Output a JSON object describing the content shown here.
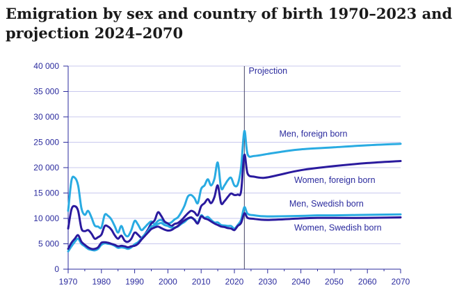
{
  "chart_data": {
    "type": "line",
    "title": "Emigration by sex and country of birth 1970–2023 and projection 2024–2070",
    "xlim": [
      1970,
      2070
    ],
    "ylim": [
      0,
      40000
    ],
    "x_ticks": [
      1970,
      1980,
      1990,
      2000,
      2010,
      2020,
      2030,
      2040,
      2050,
      2060,
      2070
    ],
    "y_ticks": [
      0,
      5000,
      10000,
      15000,
      20000,
      25000,
      30000,
      35000,
      40000
    ],
    "y_tick_labels": [
      "0",
      "5 000",
      "10 000",
      "15 000",
      "20 000",
      "25 000",
      "30 000",
      "35 000",
      "40 000"
    ],
    "grid": "horizontal",
    "projection_marker": {
      "x": 2023,
      "label": "Projection"
    },
    "colors": {
      "light": "#29abe2",
      "dark": "#2a1a9e",
      "grid": "#c8c8ee",
      "axis": "#2b2b9e"
    },
    "series": [
      {
        "name": "Men, foreign born",
        "color": "#29abe2",
        "points": [
          [
            1970,
            11500
          ],
          [
            1971,
            17500
          ],
          [
            1972,
            18000
          ],
          [
            1973,
            16500
          ],
          [
            1974,
            12000
          ],
          [
            1975,
            10700
          ],
          [
            1976,
            11500
          ],
          [
            1977,
            10200
          ],
          [
            1978,
            8600
          ],
          [
            1979,
            8400
          ],
          [
            1980,
            8200
          ],
          [
            1981,
            10700
          ],
          [
            1982,
            10500
          ],
          [
            1983,
            9800
          ],
          [
            1984,
            8500
          ],
          [
            1985,
            7200
          ],
          [
            1986,
            8500
          ],
          [
            1987,
            6900
          ],
          [
            1988,
            6500
          ],
          [
            1989,
            7700
          ],
          [
            1990,
            9500
          ],
          [
            1991,
            8800
          ],
          [
            1992,
            7700
          ],
          [
            1993,
            8200
          ],
          [
            1994,
            8900
          ],
          [
            1995,
            9400
          ],
          [
            1996,
            8900
          ],
          [
            1997,
            9500
          ],
          [
            1998,
            9700
          ],
          [
            1999,
            9200
          ],
          [
            2000,
            9000
          ],
          [
            2001,
            9200
          ],
          [
            2002,
            9800
          ],
          [
            2003,
            10200
          ],
          [
            2004,
            11200
          ],
          [
            2005,
            12500
          ],
          [
            2006,
            14300
          ],
          [
            2007,
            14600
          ],
          [
            2008,
            14000
          ],
          [
            2009,
            13000
          ],
          [
            2010,
            15800
          ],
          [
            2011,
            16500
          ],
          [
            2012,
            17700
          ],
          [
            2013,
            16500
          ],
          [
            2014,
            17800
          ],
          [
            2015,
            21000
          ],
          [
            2016,
            16000
          ],
          [
            2017,
            16500
          ],
          [
            2018,
            17500
          ],
          [
            2019,
            18000
          ],
          [
            2020,
            16500
          ],
          [
            2021,
            16700
          ],
          [
            2022,
            20000
          ],
          [
            2023,
            27200
          ],
          [
            2024,
            22600
          ],
          [
            2026,
            22300
          ],
          [
            2030,
            22700
          ],
          [
            2035,
            23200
          ],
          [
            2040,
            23600
          ],
          [
            2050,
            24000
          ],
          [
            2060,
            24400
          ],
          [
            2070,
            24700
          ]
        ]
      },
      {
        "name": "Women, foreign born",
        "color": "#2a1a9e",
        "points": [
          [
            1970,
            8000
          ],
          [
            1971,
            11800
          ],
          [
            1972,
            12400
          ],
          [
            1973,
            11500
          ],
          [
            1974,
            8000
          ],
          [
            1975,
            7500
          ],
          [
            1976,
            7700
          ],
          [
            1977,
            7000
          ],
          [
            1978,
            6000
          ],
          [
            1979,
            6300
          ],
          [
            1980,
            6800
          ],
          [
            1981,
            8500
          ],
          [
            1982,
            8400
          ],
          [
            1983,
            7800
          ],
          [
            1984,
            6700
          ],
          [
            1985,
            6000
          ],
          [
            1986,
            6600
          ],
          [
            1987,
            5600
          ],
          [
            1988,
            5400
          ],
          [
            1989,
            6000
          ],
          [
            1990,
            7200
          ],
          [
            1991,
            6800
          ],
          [
            1992,
            6200
          ],
          [
            1993,
            6800
          ],
          [
            1994,
            7800
          ],
          [
            1995,
            9000
          ],
          [
            1996,
            9600
          ],
          [
            1997,
            11200
          ],
          [
            1998,
            10500
          ],
          [
            1999,
            9400
          ],
          [
            2000,
            9000
          ],
          [
            2001,
            8500
          ],
          [
            2002,
            8900
          ],
          [
            2003,
            9100
          ],
          [
            2004,
            9600
          ],
          [
            2005,
            10300
          ],
          [
            2006,
            11000
          ],
          [
            2007,
            11500
          ],
          [
            2008,
            11200
          ],
          [
            2009,
            10600
          ],
          [
            2010,
            12400
          ],
          [
            2011,
            13000
          ],
          [
            2012,
            13800
          ],
          [
            2013,
            13000
          ],
          [
            2014,
            14200
          ],
          [
            2015,
            16500
          ],
          [
            2016,
            13000
          ],
          [
            2017,
            13400
          ],
          [
            2018,
            14200
          ],
          [
            2019,
            14900
          ],
          [
            2020,
            14600
          ],
          [
            2021,
            14700
          ],
          [
            2022,
            15300
          ],
          [
            2023,
            22500
          ],
          [
            2024,
            18800
          ],
          [
            2026,
            18200
          ],
          [
            2029,
            18000
          ],
          [
            2033,
            18500
          ],
          [
            2040,
            19500
          ],
          [
            2050,
            20300
          ],
          [
            2060,
            20900
          ],
          [
            2070,
            21300
          ]
        ]
      },
      {
        "name": "Men, Swedish born",
        "color": "#29abe2",
        "points": [
          [
            1970,
            3500
          ],
          [
            1971,
            4500
          ],
          [
            1972,
            5400
          ],
          [
            1973,
            6000
          ],
          [
            1974,
            5000
          ],
          [
            1975,
            4500
          ],
          [
            1976,
            4000
          ],
          [
            1977,
            3800
          ],
          [
            1978,
            3700
          ],
          [
            1979,
            4000
          ],
          [
            1980,
            4800
          ],
          [
            1981,
            5100
          ],
          [
            1982,
            5000
          ],
          [
            1983,
            4900
          ],
          [
            1984,
            4600
          ],
          [
            1985,
            4200
          ],
          [
            1986,
            4300
          ],
          [
            1987,
            4200
          ],
          [
            1988,
            4000
          ],
          [
            1989,
            4300
          ],
          [
            1990,
            4900
          ],
          [
            1991,
            5300
          ],
          [
            1992,
            6000
          ],
          [
            1993,
            6800
          ],
          [
            1994,
            7500
          ],
          [
            1995,
            8400
          ],
          [
            1996,
            8600
          ],
          [
            1997,
            8900
          ],
          [
            1998,
            9100
          ],
          [
            1999,
            8700
          ],
          [
            2000,
            8500
          ],
          [
            2001,
            8200
          ],
          [
            2002,
            8200
          ],
          [
            2003,
            8400
          ],
          [
            2004,
            8900
          ],
          [
            2005,
            9300
          ],
          [
            2006,
            9900
          ],
          [
            2007,
            10100
          ],
          [
            2008,
            9800
          ],
          [
            2009,
            9200
          ],
          [
            2010,
            10600
          ],
          [
            2011,
            10100
          ],
          [
            2012,
            10300
          ],
          [
            2013,
            9700
          ],
          [
            2014,
            9200
          ],
          [
            2015,
            9200
          ],
          [
            2016,
            8700
          ],
          [
            2017,
            8600
          ],
          [
            2018,
            8500
          ],
          [
            2019,
            8500
          ],
          [
            2020,
            8000
          ],
          [
            2021,
            8700
          ],
          [
            2022,
            9700
          ],
          [
            2023,
            12200
          ],
          [
            2024,
            10900
          ],
          [
            2026,
            10600
          ],
          [
            2030,
            10400
          ],
          [
            2040,
            10500
          ],
          [
            2045,
            10600
          ],
          [
            2050,
            10600
          ],
          [
            2060,
            10700
          ],
          [
            2070,
            10800
          ]
        ]
      },
      {
        "name": "Women, Swedish born",
        "color": "#2a1a9e",
        "points": [
          [
            1970,
            4000
          ],
          [
            1971,
            5200
          ],
          [
            1972,
            6000
          ],
          [
            1973,
            6700
          ],
          [
            1974,
            5400
          ],
          [
            1975,
            4800
          ],
          [
            1976,
            4300
          ],
          [
            1977,
            4000
          ],
          [
            1978,
            4000
          ],
          [
            1979,
            4300
          ],
          [
            1980,
            5200
          ],
          [
            1981,
            5300
          ],
          [
            1982,
            5200
          ],
          [
            1983,
            5000
          ],
          [
            1984,
            4800
          ],
          [
            1985,
            4500
          ],
          [
            1986,
            4600
          ],
          [
            1987,
            4500
          ],
          [
            1988,
            4300
          ],
          [
            1989,
            4500
          ],
          [
            1990,
            4600
          ],
          [
            1991,
            5000
          ],
          [
            1992,
            5800
          ],
          [
            1993,
            6500
          ],
          [
            1994,
            7200
          ],
          [
            1995,
            7900
          ],
          [
            1996,
            8200
          ],
          [
            1997,
            8400
          ],
          [
            1998,
            8100
          ],
          [
            1999,
            7800
          ],
          [
            2000,
            7600
          ],
          [
            2001,
            7700
          ],
          [
            2002,
            8100
          ],
          [
            2003,
            8500
          ],
          [
            2004,
            9100
          ],
          [
            2005,
            9600
          ],
          [
            2006,
            10000
          ],
          [
            2007,
            10200
          ],
          [
            2008,
            9700
          ],
          [
            2009,
            9000
          ],
          [
            2010,
            10400
          ],
          [
            2011,
            10000
          ],
          [
            2012,
            9800
          ],
          [
            2013,
            9400
          ],
          [
            2014,
            9000
          ],
          [
            2015,
            8700
          ],
          [
            2016,
            8400
          ],
          [
            2017,
            8300
          ],
          [
            2018,
            8100
          ],
          [
            2019,
            8000
          ],
          [
            2020,
            7700
          ],
          [
            2021,
            8500
          ],
          [
            2022,
            9100
          ],
          [
            2023,
            11000
          ],
          [
            2024,
            10100
          ],
          [
            2026,
            9900
          ],
          [
            2030,
            9700
          ],
          [
            2040,
            10000
          ],
          [
            2045,
            10100
          ],
          [
            2050,
            10100
          ],
          [
            2060,
            10100
          ],
          [
            2070,
            10200
          ]
        ]
      }
    ],
    "annotations": [
      {
        "text": "Projection",
        "x": 2024.3,
        "y": 38500,
        "color": "#2b2b9e"
      },
      {
        "text": "Men, foreign born",
        "x": 2033.5,
        "y": 26100,
        "color": "#2b2b9e"
      },
      {
        "text": "Women, foreign born",
        "x": 2038,
        "y": 17000,
        "color": "#2b2b9e"
      },
      {
        "text": "Men, Swedish born",
        "x": 2036.5,
        "y": 12300,
        "color": "#2b2b9e"
      },
      {
        "text": "Women, Swedish born",
        "x": 2038,
        "y": 7600,
        "color": "#2b2b9e"
      }
    ]
  }
}
